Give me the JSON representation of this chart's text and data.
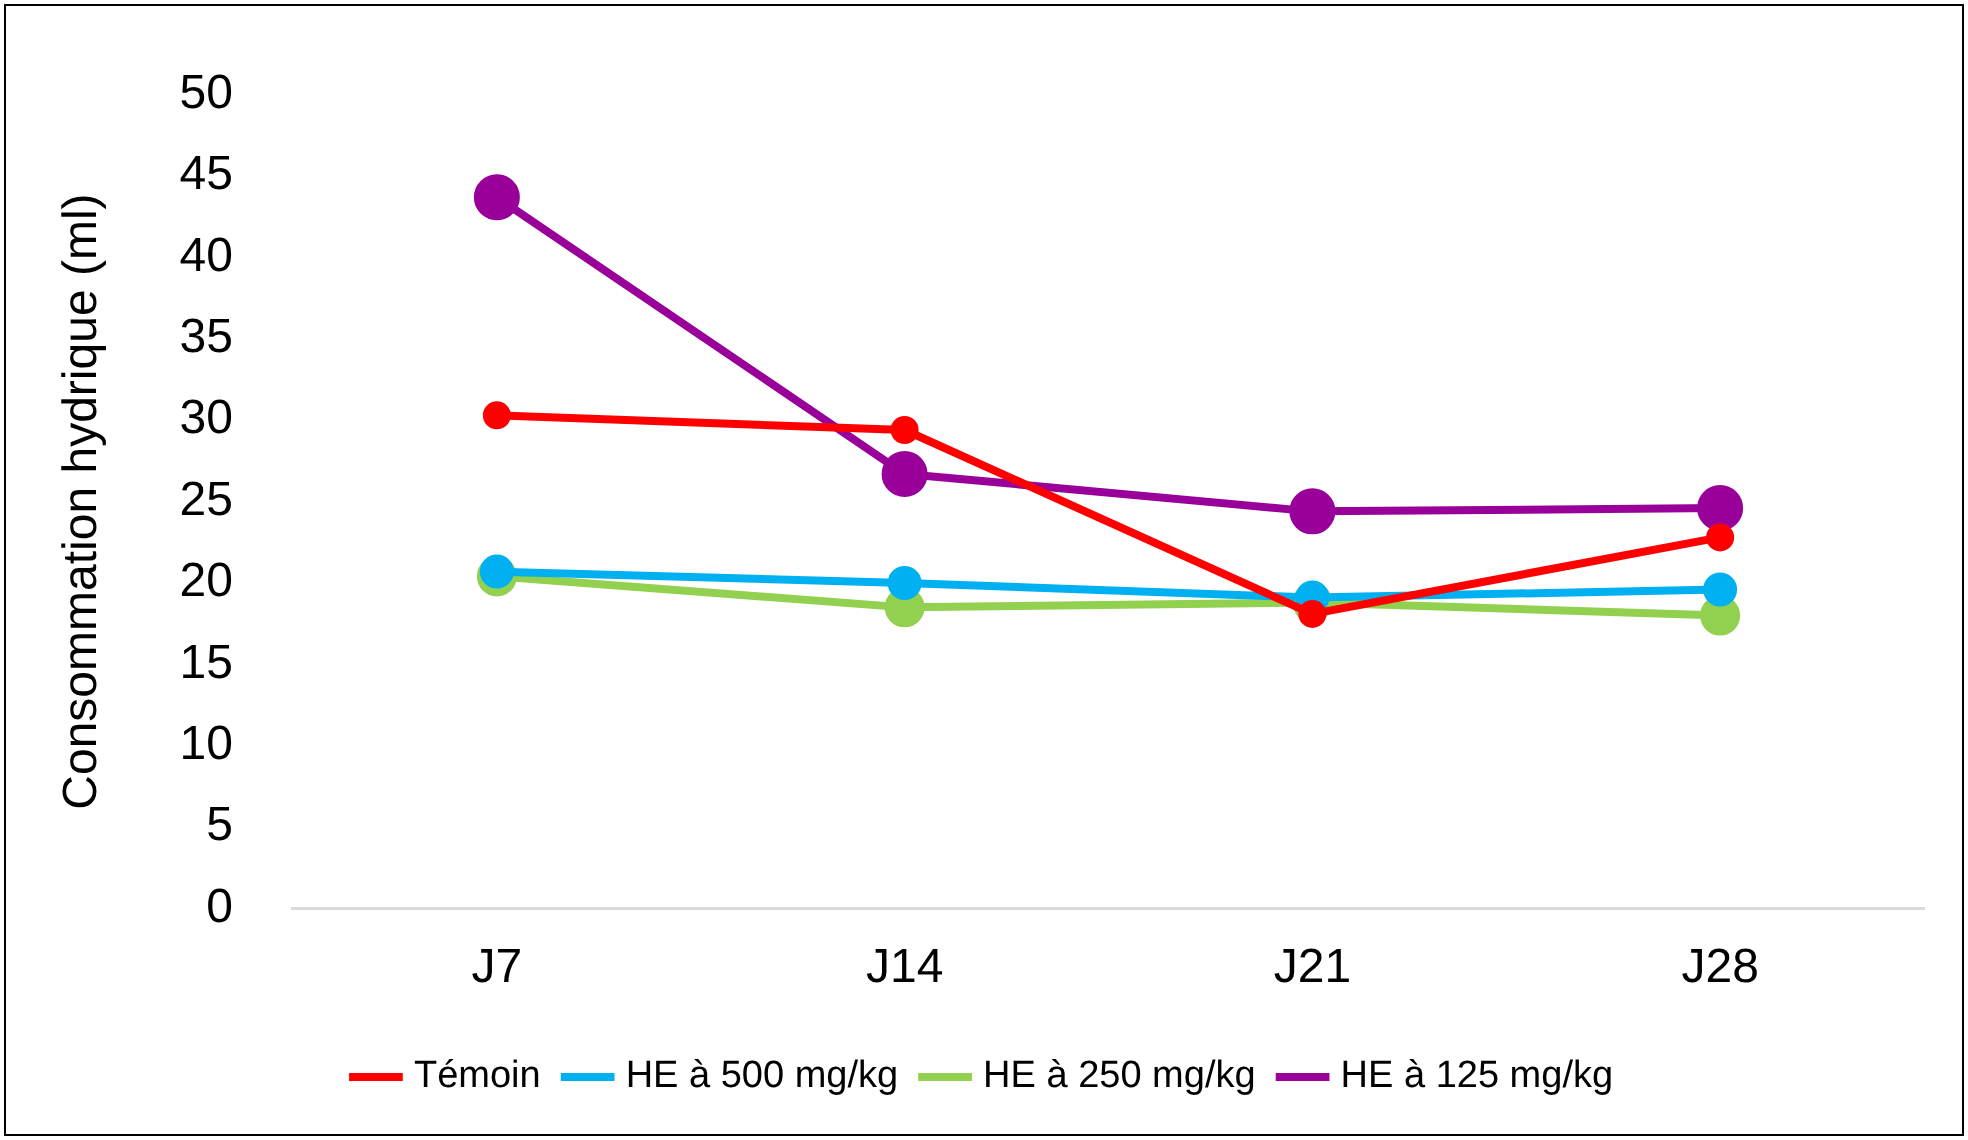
{
  "chart_data": {
    "type": "line",
    "ylabel": "Consommation hydrique (ml)",
    "categories": [
      "J7",
      "J14",
      "J21",
      "J28"
    ],
    "series": [
      {
        "name": "Témoin",
        "color": "#ff0000",
        "values": [
          30.3,
          29.4,
          18.1,
          22.8
        ]
      },
      {
        "name": "HE à 500 mg/kg",
        "color": "#00b0f0",
        "values": [
          20.7,
          20.0,
          19.1,
          19.6
        ]
      },
      {
        "name": "HE à 250 mg/kg",
        "color": "#92d050",
        "values": [
          20.4,
          18.5,
          18.8,
          18.0
        ]
      },
      {
        "name": "HE à 125 mg/kg",
        "color": "#990099",
        "values": [
          43.7,
          26.7,
          24.4,
          24.6
        ]
      }
    ],
    "ylim": [
      0,
      50
    ],
    "yticks": [
      0,
      5,
      10,
      15,
      20,
      25,
      30,
      35,
      40,
      45,
      50
    ],
    "grid": false,
    "legend": "bottom",
    "marker": "circle",
    "line_style": "solid"
  }
}
